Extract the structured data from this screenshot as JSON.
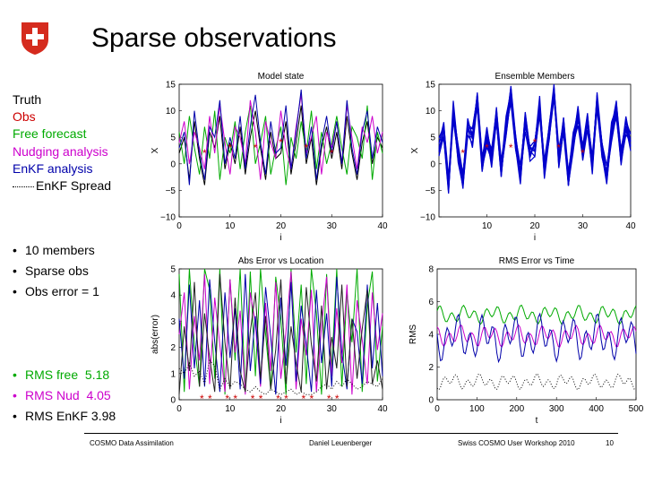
{
  "slide_title": "Sparse observations",
  "legend": [
    {
      "label": "Truth",
      "color": "#000000"
    },
    {
      "label": "Obs",
      "color": "#cc0000"
    },
    {
      "label": "Free forecast",
      "color": "#00aa00"
    },
    {
      "label": "Nudging analysis",
      "color": "#cc00cc"
    },
    {
      "label": "EnKF analysis",
      "color": "#0000aa"
    },
    {
      "label": "EnKF Spread",
      "color": "#000000"
    }
  ],
  "bullets_top": [
    "10 members",
    "Sparse obs",
    "Obs error = 1"
  ],
  "bullets_bottom": [
    {
      "label": "RMS free",
      "value": "5.18",
      "color": "#00aa00"
    },
    {
      "label": "RMS Nud",
      "value": "4.05",
      "color": "#cc00cc"
    },
    {
      "label": "RMS EnKF",
      "value": "3.98",
      "color": "#000000"
    }
  ],
  "footer": {
    "left": "COSMO Data Assimilation",
    "center": "Daniel Leuenberger",
    "right": "Swiss COSMO User Workshop 2010",
    "page": "10"
  },
  "chart_data": [
    {
      "type": "line",
      "title": "Model state",
      "xlabel": "i",
      "ylabel": "X",
      "xlim": [
        0,
        40
      ],
      "ylim": [
        -10,
        15
      ],
      "xticks": [
        "0",
        "10",
        "20",
        "30",
        "40"
      ],
      "yticks": [
        "15",
        "10",
        "5",
        "0",
        "−5",
        "−10"
      ],
      "obs_locations": [
        5,
        10,
        15,
        20,
        25,
        30
      ],
      "series": [
        {
          "name": "Truth",
          "color": "#000000",
          "values": [
            2,
            5,
            -3,
            8,
            1,
            -4,
            6,
            3,
            9,
            -1,
            4,
            0,
            7,
            -2,
            5,
            10,
            3,
            -3,
            6,
            1,
            2,
            8,
            -2,
            4,
            11,
            0,
            5,
            -4,
            3,
            7,
            1,
            6,
            -1,
            9,
            2,
            -3,
            4,
            8,
            0,
            5,
            3
          ]
        },
        {
          "name": "Free forecast",
          "color": "#00aa00",
          "values": [
            6,
            0,
            9,
            3,
            -2,
            7,
            1,
            10,
            -3,
            5,
            2,
            8,
            -1,
            6,
            11,
            0,
            4,
            9,
            -2,
            3,
            7,
            -4,
            5,
            1,
            8,
            2,
            10,
            -1,
            6,
            0,
            4,
            9,
            3,
            -2,
            7,
            5,
            1,
            11,
            -3,
            6,
            2
          ]
        },
        {
          "name": "Nudging analysis",
          "color": "#cc00cc",
          "values": [
            4,
            8,
            0,
            6,
            3,
            -1,
            9,
            2,
            11,
            4,
            -2,
            7,
            5,
            0,
            12,
            6,
            -3,
            8,
            4,
            1,
            10,
            3,
            -1,
            7,
            13,
            2,
            5,
            9,
            -2,
            6,
            3,
            8,
            0,
            11,
            5,
            -1,
            7,
            4,
            9,
            2,
            6
          ]
        },
        {
          "name": "EnKF analysis",
          "color": "#0000aa",
          "values": [
            3,
            6,
            -4,
            10,
            2,
            -3,
            7,
            5,
            12,
            0,
            5,
            1,
            9,
            -1,
            7,
            13,
            4,
            -2,
            8,
            2,
            3,
            11,
            -1,
            6,
            14,
            1,
            7,
            -3,
            4,
            9,
            2,
            8,
            0,
            12,
            3,
            -2,
            6,
            10,
            1,
            7,
            4
          ]
        }
      ],
      "obs_values": [
        2,
        3,
        3,
        4,
        3,
        2
      ]
    },
    {
      "type": "line",
      "title": "Ensemble Members",
      "xlabel": "i",
      "ylabel": "X",
      "xlim": [
        0,
        40
      ],
      "ylim": [
        -10,
        15
      ],
      "xticks": [
        "10",
        "20",
        "30",
        "40"
      ],
      "yticks": [
        "15",
        "10",
        "5",
        "0",
        "−5",
        "−10"
      ],
      "members": 10,
      "base": [
        3,
        6,
        -4,
        10,
        2,
        -3,
        7,
        5,
        12,
        0,
        5,
        1,
        9,
        -1,
        7,
        13,
        4,
        -2,
        8,
        2,
        3,
        11,
        -1,
        6,
        14,
        1,
        7,
        -3,
        4,
        9,
        2,
        8,
        0,
        12,
        3,
        -2,
        6,
        10,
        1,
        7,
        4
      ],
      "color": "#0000cc",
      "obs_locations": [
        5,
        10,
        15,
        20,
        25,
        30
      ],
      "obs_values": [
        2,
        3,
        3,
        4,
        3,
        2
      ]
    },
    {
      "type": "line",
      "title": "Abs Error vs Location",
      "xlabel": "i",
      "ylabel": "abs(error)",
      "xlim": [
        0,
        40
      ],
      "ylim": [
        0,
        5
      ],
      "xticks": [
        "0",
        "10",
        "20",
        "30",
        "40"
      ],
      "yticks": [
        "5",
        "4",
        "3",
        "2",
        "1",
        "0"
      ],
      "series": [
        {
          "name": "Free forecast",
          "color": "#00aa00",
          "values": [
            4.8,
            0.3,
            5,
            2.1,
            0.5,
            5,
            4.2,
            0.8,
            5,
            0.2,
            4.6,
            1.5,
            5,
            0.3,
            4.9,
            0.9,
            5,
            2.5,
            0.4,
            4.7,
            3.1,
            0.2,
            5,
            1.8,
            4.4,
            0.6,
            5,
            3.3,
            0.2,
            4.8,
            1.2,
            5,
            0.5,
            4.1,
            2.2,
            5,
            0.3,
            3.6,
            4.9,
            0.7,
            2.8
          ]
        },
        {
          "name": "Nudging analysis",
          "color": "#cc00cc",
          "values": [
            2.5,
            4.1,
            0.4,
            3.2,
            1.5,
            4.8,
            0.6,
            3.9,
            2.1,
            0.3,
            4.6,
            1.8,
            3.4,
            0.2,
            4.1,
            2.9,
            0.5,
            3.7,
            1.1,
            4.5,
            0.8,
            2.6,
            4.9,
            0.4,
            3.1,
            1.7,
            4.2,
            0.3,
            2.8,
            4.7,
            0.9,
            3.5,
            1.4,
            4.4,
            0.2,
            3.8,
            2.3,
            0.6,
            4.1,
            1.9,
            3.3
          ]
        },
        {
          "name": "EnKF analysis",
          "color": "#0000aa",
          "values": [
            3.1,
            0.8,
            4.4,
            1.2,
            3.8,
            0.5,
            4.6,
            2.2,
            0.3,
            4.1,
            1.6,
            3.5,
            0.4,
            4.8,
            1.1,
            3.2,
            0.6,
            4.3,
            2.4,
            0.2,
            3.9,
            1.3,
            4.5,
            0.7,
            3.6,
            2.1,
            0.3,
            4.2,
            1.4,
            3.3,
            0.5,
            4.7,
            1.8,
            0.4,
            3.1,
            2.6,
            0.6,
            4.4,
            1.2,
            3.7,
            0.9
          ]
        },
        {
          "name": "Truth",
          "color": "#222222",
          "values": [
            0.2,
            2.8,
            1.1,
            4.5,
            0.5,
            3.3,
            1.6,
            0.3,
            4.8,
            2.2,
            0.4,
            3.9,
            1.1,
            0.3,
            2.6,
            4.1,
            0.8,
            3.2,
            0.4,
            1.9,
            4.6,
            0.6,
            2.8,
            1.4,
            0.3,
            4.3,
            2.1,
            0.7,
            3.6,
            0.4,
            2.4,
            1.2,
            4.4,
            0.5,
            3.1,
            0.8,
            2.7,
            4.2,
            0.6,
            1.5,
            0.4
          ]
        },
        {
          "name": "EnKF Spread",
          "color": "#000000",
          "dotted": true,
          "values": [
            1.2,
            1.0,
            1.4,
            0.9,
            1.1,
            0.6,
            1.5,
            1.3,
            0.4,
            0.8,
            0.5,
            0.7,
            0.6,
            0.4,
            0.3,
            0.5,
            0.3,
            0.2,
            0.4,
            0.3,
            0.2,
            0.3,
            0.4,
            0.2,
            0.3,
            0.2,
            0.2,
            0.3,
            0.5,
            0.6,
            0.4,
            0.7,
            0.5,
            0.8,
            0.6,
            0.4,
            0.5,
            0.7,
            0.6,
            0.5,
            0.8
          ]
        }
      ],
      "obs_locations": [
        5,
        10,
        15,
        20,
        25,
        30
      ]
    },
    {
      "type": "line",
      "title": "RMS Error vs Time",
      "xlabel": "t",
      "ylabel": "RMS",
      "xlim": [
        0,
        500
      ],
      "ylim": [
        0,
        8
      ],
      "xticks": [
        "0",
        "100",
        "200",
        "300",
        "400",
        "500"
      ],
      "yticks": [
        "8",
        "6",
        "4",
        "2",
        "0"
      ],
      "series": [
        {
          "name": "Free forecast",
          "color": "#00aa00",
          "level": 5.2,
          "amp": 0.6
        },
        {
          "name": "Nudging analysis",
          "color": "#cc00cc",
          "level": 3.9,
          "amp": 0.7
        },
        {
          "name": "EnKF analysis",
          "color": "#0000aa",
          "level": 3.8,
          "amp": 1.5
        },
        {
          "name": "EnKF Spread",
          "color": "#000000",
          "level": 1.1,
          "amp": 0.5,
          "dotted": true
        }
      ]
    }
  ]
}
